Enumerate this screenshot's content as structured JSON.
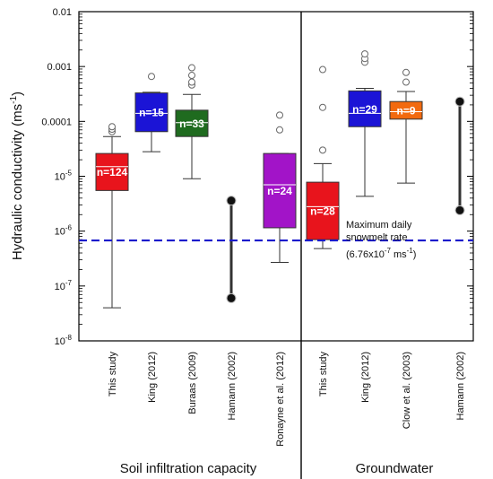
{
  "chart_data": {
    "type": "boxplot",
    "title": "",
    "ylabel": "Hydraulic conductivity (ms-1)",
    "ylabel_main": "Hydraulic conductivity (ms",
    "ylabel_sup": "-1",
    "ylabel_end": ")",
    "yscale": "log",
    "ylim": [
      1e-08,
      0.01
    ],
    "yticks": [
      {
        "value": 0.01,
        "base": "0.01",
        "sup": ""
      },
      {
        "value": 0.001,
        "base": "0.001",
        "sup": ""
      },
      {
        "value": 0.0001,
        "base": "0.0001",
        "sup": ""
      },
      {
        "value": 1e-05,
        "base": "10",
        "sup": "-5"
      },
      {
        "value": 1e-06,
        "base": "10",
        "sup": "-6"
      },
      {
        "value": 1e-07,
        "base": "10",
        "sup": "-7"
      },
      {
        "value": 1e-08,
        "base": "10",
        "sup": "-8"
      }
    ],
    "groups": [
      {
        "label": "Soil infiltration capacity",
        "start": 0,
        "end": 4
      },
      {
        "label": "Groundwater",
        "start": 5,
        "end": 8
      }
    ],
    "boxes": [
      {
        "category": "This study",
        "kind": "box",
        "color": "#e8141c",
        "n_label": "n=124",
        "q1": 5.5e-06,
        "median": 1.5e-05,
        "q3": 2.6e-05,
        "whisker_low": 4e-08,
        "whisker_high": 5.3e-05,
        "outliers": [
          6.5e-05,
          7.2e-05,
          8e-05
        ]
      },
      {
        "category": "King (2012)",
        "kind": "box",
        "color": "#1b14d6",
        "n_label": "n=15",
        "q1": 6.5e-05,
        "median": 0.00014,
        "q3": 0.00033,
        "whisker_low": 2.8e-05,
        "whisker_high": 0.00034,
        "outliers": [
          0.00066
        ]
      },
      {
        "category": "Buraas (2009)",
        "kind": "box",
        "color": "#1f6b1f",
        "n_label": "n=33",
        "q1": 5.3e-05,
        "median": 9.5e-05,
        "q3": 0.00016,
        "whisker_low": 9e-06,
        "whisker_high": 0.00031,
        "outliers": [
          0.00046,
          0.00052,
          0.00069,
          0.00095
        ]
      },
      {
        "category": "Hamann (2002)",
        "kind": "range",
        "color": "#333333",
        "n_label": "",
        "min": 6e-08,
        "max": 3.6e-06
      },
      {
        "category": "Ronayne et al. (2012)",
        "kind": "box",
        "color": "#a214c8",
        "n_label": "n=24",
        "q1": 1.15e-06,
        "median": 7e-06,
        "q3": 2.6e-05,
        "whisker_low": 2.7e-07,
        "whisker_high": 2.6e-05,
        "outliers": [
          7e-05,
          0.00013
        ]
      },
      {
        "category": "This study",
        "kind": "box",
        "color": "#e8141c",
        "n_label": "n=28",
        "q1": 7e-07,
        "median": 2.8e-06,
        "q3": 7.8e-06,
        "whisker_low": 4.8e-07,
        "whisker_high": 1.7e-05,
        "outliers": [
          3e-05,
          0.00018,
          0.00088
        ]
      },
      {
        "category": "King (2012)",
        "kind": "box",
        "color": "#1b14d6",
        "n_label": "n=29",
        "q1": 8e-05,
        "median": 0.00014,
        "q3": 0.00036,
        "whisker_low": 4.3e-06,
        "whisker_high": 0.0004,
        "outliers": [
          0.0012,
          0.0014,
          0.0017
        ]
      },
      {
        "category": "Clow et al. (2003)",
        "kind": "box",
        "color": "#f26a0f",
        "n_label": "n=9",
        "q1": 0.00011,
        "median": 0.00015,
        "q3": 0.00023,
        "whisker_low": 7.5e-06,
        "whisker_high": 0.00035,
        "outliers": [
          0.00052,
          0.00078
        ]
      },
      {
        "category": "Hamann (2002)",
        "kind": "range",
        "color": "#333333",
        "n_label": "",
        "min": 2.4e-06,
        "max": 0.00023
      }
    ],
    "reference_line": {
      "value": 6.76e-07,
      "color": "#1a1acc",
      "label_line1": "Maximum daily",
      "label_line2": "snowmelt rate",
      "label_line3_base": "(6.76x10",
      "label_line3_sup1": "-7",
      "label_line3_mid": " ms",
      "label_line3_sup2": "-1",
      "label_line3_end": ")"
    }
  }
}
